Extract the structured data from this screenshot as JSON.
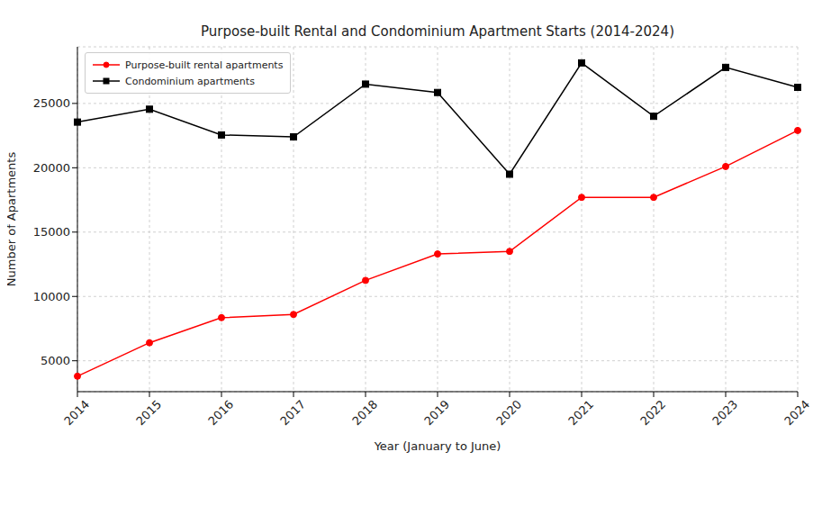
{
  "chart_data": {
    "type": "line",
    "title": "Purpose-built Rental and Condominium Apartment Starts (2014-2024)",
    "x_label": "Year (January to June)",
    "y_label": "Number of Apartments",
    "categories": [
      "2014",
      "2015",
      "2016",
      "2017",
      "2018",
      "2019",
      "2020",
      "2021",
      "2022",
      "2023",
      "2024"
    ],
    "series": [
      {
        "name": "Purpose-built rental apartments",
        "color": "#ff0000",
        "marker": "circle",
        "values": [
          3800,
          6400,
          8350,
          8600,
          11250,
          13300,
          13500,
          17700,
          17700,
          20100,
          22900
        ]
      },
      {
        "name": "Condominium apartments",
        "color": "#000000",
        "marker": "square",
        "values": [
          23550,
          24550,
          22550,
          22400,
          26500,
          25850,
          19500,
          28150,
          24000,
          27800,
          26250
        ]
      }
    ],
    "ylim": [
      2600,
      29400
    ],
    "yticks": [
      5000,
      10000,
      15000,
      20000,
      25000
    ],
    "grid": true,
    "legend": "upper left"
  }
}
